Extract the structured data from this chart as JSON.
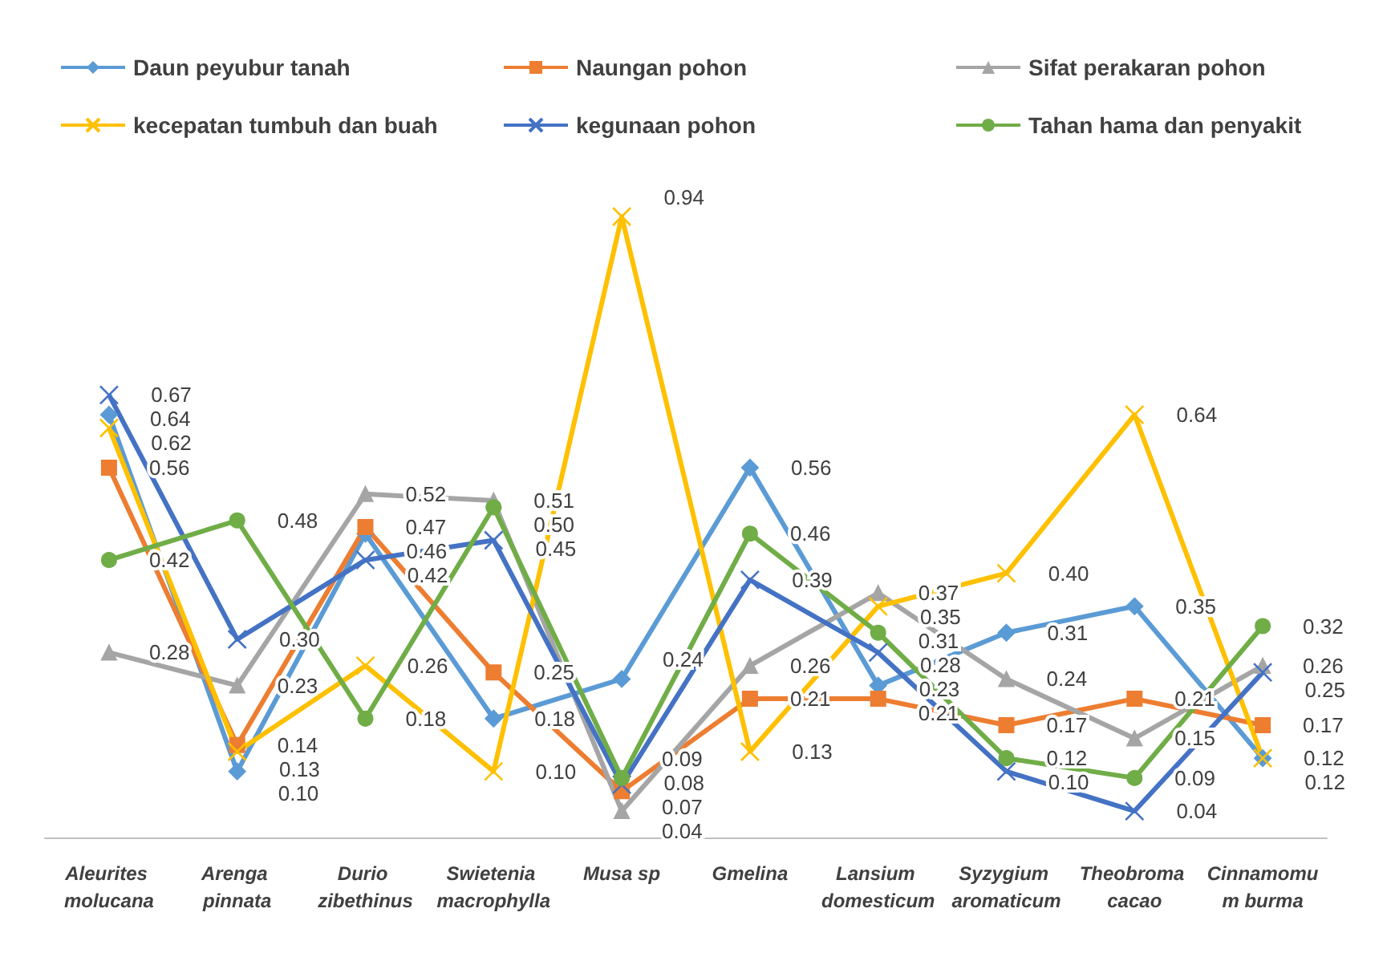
{
  "chart_data": {
    "type": "line",
    "categories": [
      "Aleurites molucana",
      "Arenga pinnata",
      "Durio zibethinus",
      "Swietenia macrophylla",
      "Musa sp",
      "Gmelina",
      "Lansium domesticum",
      "Syzygium aromaticum",
      "Theobroma cacao",
      "Cinnamomum burma"
    ],
    "series": [
      {
        "name": "Daun peyubur tanah",
        "color": "#5b9bd5",
        "marker": "diamond",
        "values": [
          0.64,
          0.1,
          0.46,
          0.18,
          0.24,
          0.56,
          0.23,
          0.31,
          0.35,
          0.12
        ],
        "value_labels": [
          "0.64",
          "0.10",
          "0.46",
          "0.18",
          "0.24",
          "0.56",
          "0.23",
          "0.31",
          "0.35",
          "0.12"
        ]
      },
      {
        "name": "Naungan pohon",
        "color": "#ed7d31",
        "marker": "square",
        "values": [
          0.56,
          0.14,
          0.47,
          0.25,
          0.07,
          0.21,
          0.21,
          0.17,
          0.21,
          0.17
        ],
        "value_labels": [
          "0.56",
          "0.14",
          "0.47",
          "0.25",
          "0.07",
          "0.21",
          "0.21",
          "0.17",
          "0.21",
          "0.17"
        ]
      },
      {
        "name": "Sifat perakaran pohon",
        "color": "#a5a5a5",
        "marker": "triangle",
        "values": [
          0.28,
          0.23,
          0.52,
          0.51,
          0.04,
          0.26,
          0.37,
          0.24,
          0.15,
          0.26
        ],
        "value_labels": [
          "0.28",
          "0.23",
          "0.52",
          "0.51",
          "0.04",
          "0.26",
          "0.37",
          "0.24",
          "0.15",
          "0.26"
        ]
      },
      {
        "name": "kecepatan tumbuh dan buah",
        "color": "#ffc000",
        "marker": "cross",
        "values": [
          0.62,
          0.13,
          0.26,
          0.1,
          0.94,
          0.13,
          0.35,
          0.4,
          0.64,
          0.12
        ],
        "value_labels": [
          "0.62",
          "0.13",
          "0.26",
          "0.10",
          "0.94",
          "0.13",
          "0.35",
          "0.40",
          "0.64",
          "0.12"
        ]
      },
      {
        "name": "kegunaan pohon",
        "color": "#4472c4",
        "marker": "cross",
        "values": [
          0.67,
          0.3,
          0.42,
          0.45,
          0.08,
          0.39,
          0.28,
          0.1,
          0.04,
          0.25
        ],
        "value_labels": [
          "0.67",
          "0.30",
          "0.42",
          "0.45",
          "0.08",
          "0.39",
          "0.28",
          "0.10",
          "0.04",
          "0.25"
        ]
      },
      {
        "name": "Tahan hama dan penyakit",
        "color": "#70ad47",
        "marker": "circle",
        "values": [
          0.42,
          0.48,
          0.18,
          0.5,
          0.09,
          0.46,
          0.31,
          0.12,
          0.09,
          0.32
        ],
        "value_labels": [
          "0.42",
          "0.48",
          "0.18",
          "0.50",
          "0.09",
          "0.46",
          "0.31",
          "0.12",
          "0.09",
          "0.32"
        ]
      }
    ],
    "grid": false,
    "legend": "top",
    "tick_labels": "x"
  }
}
